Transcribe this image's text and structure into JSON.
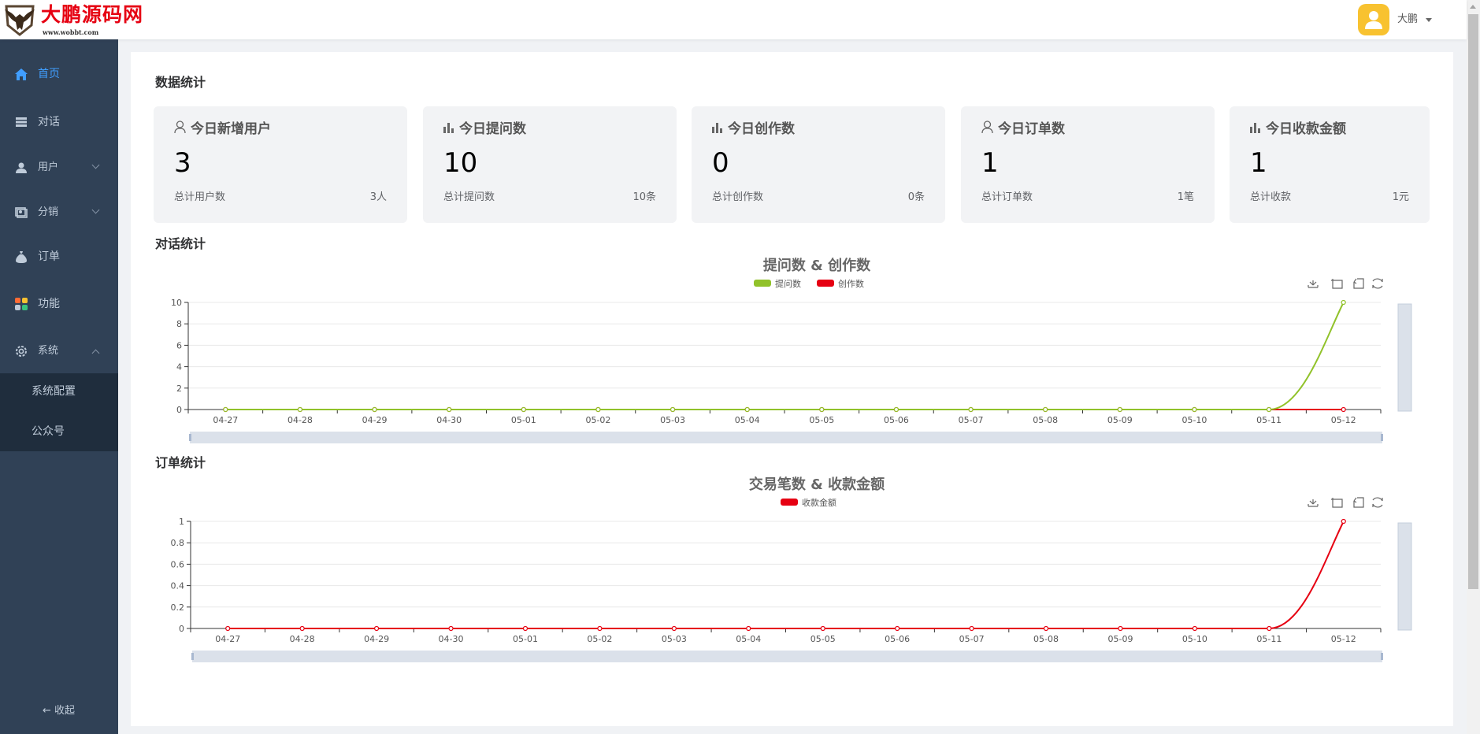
{
  "header": {
    "logo_text": "大鹏源码网",
    "logo_url": "www.wobbt.com",
    "user_name": "大鹏"
  },
  "sidebar": {
    "items": [
      {
        "label": "首页",
        "icon": "home-icon",
        "active": true
      },
      {
        "label": "对话",
        "icon": "list-icon"
      },
      {
        "label": "用户",
        "icon": "user-icon",
        "expandable": true
      },
      {
        "label": "分销",
        "icon": "distribution-icon",
        "expandable": true
      },
      {
        "label": "订单",
        "icon": "money-bag-icon"
      },
      {
        "label": "功能",
        "icon": "apps-icon"
      },
      {
        "label": "系统",
        "icon": "gear-icon",
        "expanded": true
      }
    ],
    "sub_items": [
      {
        "label": "系统配置"
      },
      {
        "label": "公众号"
      }
    ],
    "collapse_label": "← 收起"
  },
  "main": {
    "stats_title": "数据统计",
    "stats": [
      {
        "title": "今日新增用户",
        "icon": "user-outline-icon",
        "value": "3",
        "total_label": "总计用户数",
        "total_value": "3人"
      },
      {
        "title": "今日提问数",
        "icon": "bar-chart-icon",
        "value": "10",
        "total_label": "总计提问数",
        "total_value": "10条"
      },
      {
        "title": "今日创作数",
        "icon": "bar-chart-icon",
        "value": "0",
        "total_label": "总计创作数",
        "total_value": "0条"
      },
      {
        "title": "今日订单数",
        "icon": "user-outline-icon",
        "value": "1",
        "total_label": "总计订单数",
        "total_value": "1笔"
      },
      {
        "title": "今日收款金额",
        "icon": "bar-chart-icon",
        "value": "1",
        "total_label": "总计收款",
        "total_value": "1元"
      }
    ],
    "chat_section_title": "对话统计",
    "order_section_title": "订单统计"
  },
  "chart_data": [
    {
      "type": "line",
      "title": "提问数 & 创作数",
      "categories": [
        "04-27",
        "04-28",
        "04-29",
        "04-30",
        "05-01",
        "05-02",
        "05-03",
        "05-04",
        "05-05",
        "05-06",
        "05-07",
        "05-08",
        "05-09",
        "05-10",
        "05-11",
        "05-12"
      ],
      "series": [
        {
          "name": "提问数",
          "color": "#91c22a",
          "values": [
            0,
            0,
            0,
            0,
            0,
            0,
            0,
            0,
            0,
            0,
            0,
            0,
            0,
            0,
            0,
            10
          ]
        },
        {
          "name": "创作数",
          "color": "#e60012",
          "values": [
            0,
            0,
            0,
            0,
            0,
            0,
            0,
            0,
            0,
            0,
            0,
            0,
            0,
            0,
            0,
            0
          ]
        }
      ],
      "yticks": [
        "0",
        "2",
        "4",
        "6",
        "8",
        "10"
      ],
      "ylim": [
        0,
        10
      ],
      "grid": true,
      "legend": "top-center",
      "smooth": true
    },
    {
      "type": "line",
      "title": "交易笔数 & 收款金额",
      "categories": [
        "04-27",
        "04-28",
        "04-29",
        "04-30",
        "05-01",
        "05-02",
        "05-03",
        "05-04",
        "05-05",
        "05-06",
        "05-07",
        "05-08",
        "05-09",
        "05-10",
        "05-11",
        "05-12"
      ],
      "series": [
        {
          "name": "收款金额",
          "color": "#e60012",
          "values": [
            0,
            0,
            0,
            0,
            0,
            0,
            0,
            0,
            0,
            0,
            0,
            0,
            0,
            0,
            0,
            1
          ]
        }
      ],
      "yticks": [
        "0",
        "0.2",
        "0.4",
        "0.6",
        "0.8",
        "1"
      ],
      "ylim": [
        0,
        1
      ],
      "grid": true,
      "legend": "top-center",
      "smooth": true
    }
  ]
}
